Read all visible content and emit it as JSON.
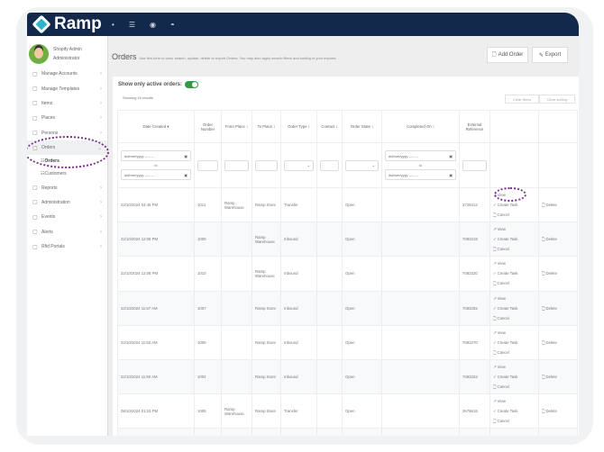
{
  "app": {
    "logo": "Ramp"
  },
  "user": {
    "name": "Shopify Admin",
    "role": "Administrator"
  },
  "sidebar": {
    "items": [
      {
        "label": "Manage Accounts",
        "icon": "briefcase-icon"
      },
      {
        "label": "Manage Templates",
        "icon": "grid-icon"
      },
      {
        "label": "Items",
        "icon": "tag-icon"
      },
      {
        "label": "Places",
        "icon": "globe-icon"
      },
      {
        "label": "Persons",
        "icon": "person-icon"
      },
      {
        "label": "Orders",
        "icon": "box-icon"
      },
      {
        "label": "Reports",
        "icon": "report-icon"
      },
      {
        "label": "Administration",
        "icon": "gear-icon"
      },
      {
        "label": "Events",
        "icon": "chart-icon"
      },
      {
        "label": "Alerts",
        "icon": "bell-icon"
      },
      {
        "label": "Rfid Portals",
        "icon": "portal-icon"
      }
    ],
    "orders_sub": [
      "Orders",
      "Customers"
    ]
  },
  "page": {
    "title": "Orders",
    "description": "Use this form to view, search, update, delete or export Orders. You may also apply search filters and sorting to your exports.",
    "add_order": "Add Order",
    "export": "Export",
    "active_label": "Show only active orders:",
    "active_on": true,
    "showing": "Showing 16 results",
    "clear_filters": "Clear filters",
    "clear_sorting": "Clear sorting"
  },
  "table": {
    "headers": [
      "Date Created ▾",
      "Order Number",
      "From Place ↕",
      "To Place ↕",
      "Order Type ↕",
      "Contact ↕",
      "Order State ↕",
      "Completed On ↕",
      "External Reference"
    ],
    "date_placeholder": "dd/mm/yyyy --:-- --",
    "to": "to",
    "actions": {
      "view": "View",
      "create_task": "Create Task",
      "cancel": "Cancel",
      "delete": "Delete"
    },
    "rows": [
      [
        "22/10/2024 04:46 PM",
        "1011",
        "Ramp Warehouse",
        "Ramp Store",
        "Transfer",
        "",
        "Open",
        "",
        "2729312"
      ],
      [
        "22/10/2024 12:08 PM",
        "1009",
        "",
        "Ramp Warehouse",
        "Inbound",
        "",
        "Open",
        "",
        "7083319"
      ],
      [
        "22/10/2024 12:08 PM",
        "1010",
        "",
        "Ramp Warehouse",
        "Inbound",
        "",
        "Open",
        "",
        "7083320"
      ],
      [
        "22/10/2024 11:57 AM",
        "1007",
        "",
        "Ramp Store",
        "Inbound",
        "",
        "Open",
        "",
        "7083282"
      ],
      [
        "22/10/2024 11:53 AM",
        "1006",
        "",
        "Ramp Store",
        "Inbound",
        "",
        "Open",
        "",
        "7083270"
      ],
      [
        "22/10/2024 11:50 AM",
        "1004",
        "",
        "Ramp Store",
        "Inbound",
        "",
        "Open",
        "",
        "7083253"
      ],
      [
        "08/10/2024 01:23 PM",
        "1005",
        "Ramp Warehouse",
        "Ramp Store",
        "Transfer",
        "",
        "Open",
        "",
        "2679615"
      ]
    ]
  }
}
